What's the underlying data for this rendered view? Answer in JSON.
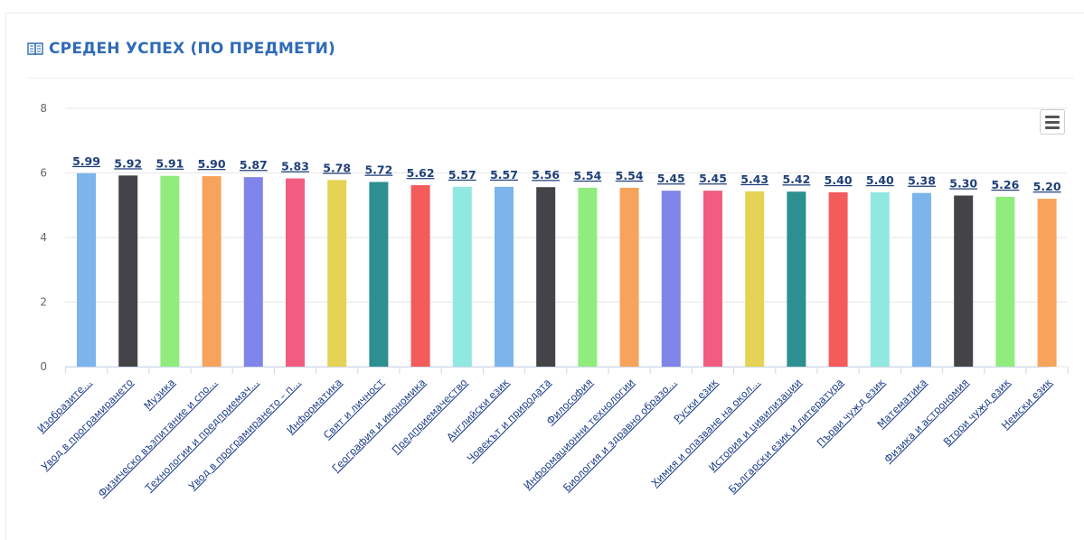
{
  "header": {
    "title": "СРЕДЕН УСПЕХ (ПО ПРЕДМЕТИ)",
    "icon": "book-icon"
  },
  "menu": {
    "icon": "hamburger-menu-icon"
  },
  "chart_data": {
    "type": "bar",
    "title": "",
    "xlabel": "",
    "ylabel": "",
    "ylim": [
      0,
      8
    ],
    "yticks": [
      0,
      2,
      4,
      6,
      8
    ],
    "grid": true,
    "categories": [
      "Изобразите…",
      "Увод в програмирането",
      "Музика",
      "Физическо възпитание и спо…",
      "Технологии и предприемач…",
      "Увод в програмирането – п…",
      "Информатика",
      "Свят и личност",
      "География и икономика",
      "Предприемачество",
      "Английски език",
      "Човекът и природата",
      "Философия",
      "Информационни технологии",
      "Биология и здравно образо…",
      "Руски език",
      "Химия и опазване на окол…",
      "История и цивилизации",
      "Български език и литература",
      "Първи чужд език",
      "Математика",
      "Физика и астрономия",
      "Втори чужд език",
      "Немски език"
    ],
    "values": [
      5.99,
      5.92,
      5.91,
      5.9,
      5.87,
      5.83,
      5.78,
      5.72,
      5.62,
      5.57,
      5.57,
      5.56,
      5.54,
      5.54,
      5.45,
      5.45,
      5.43,
      5.42,
      5.4,
      5.4,
      5.38,
      5.3,
      5.26,
      5.2
    ],
    "labels": [
      "5.99",
      "5.92",
      "5.91",
      "5.90",
      "5.87",
      "5.83",
      "5.78",
      "5.72",
      "5.62",
      "5.57",
      "5.57",
      "5.56",
      "5.54",
      "5.54",
      "5.45",
      "5.45",
      "5.43",
      "5.42",
      "5.40",
      "5.40",
      "5.38",
      "5.30",
      "5.26",
      "5.20"
    ],
    "colors": [
      "#7cb5ec",
      "#434348",
      "#90ed7d",
      "#f7a35c",
      "#8085e9",
      "#f15c80",
      "#e4d354",
      "#2b908f",
      "#f45b5b",
      "#91e8e1",
      "#7cb5ec",
      "#434348",
      "#90ed7d",
      "#f7a35c",
      "#8085e9",
      "#f15c80",
      "#e4d354",
      "#2b908f",
      "#f45b5b",
      "#91e8e1",
      "#7cb5ec",
      "#434348",
      "#90ed7d",
      "#f7a35c"
    ]
  }
}
